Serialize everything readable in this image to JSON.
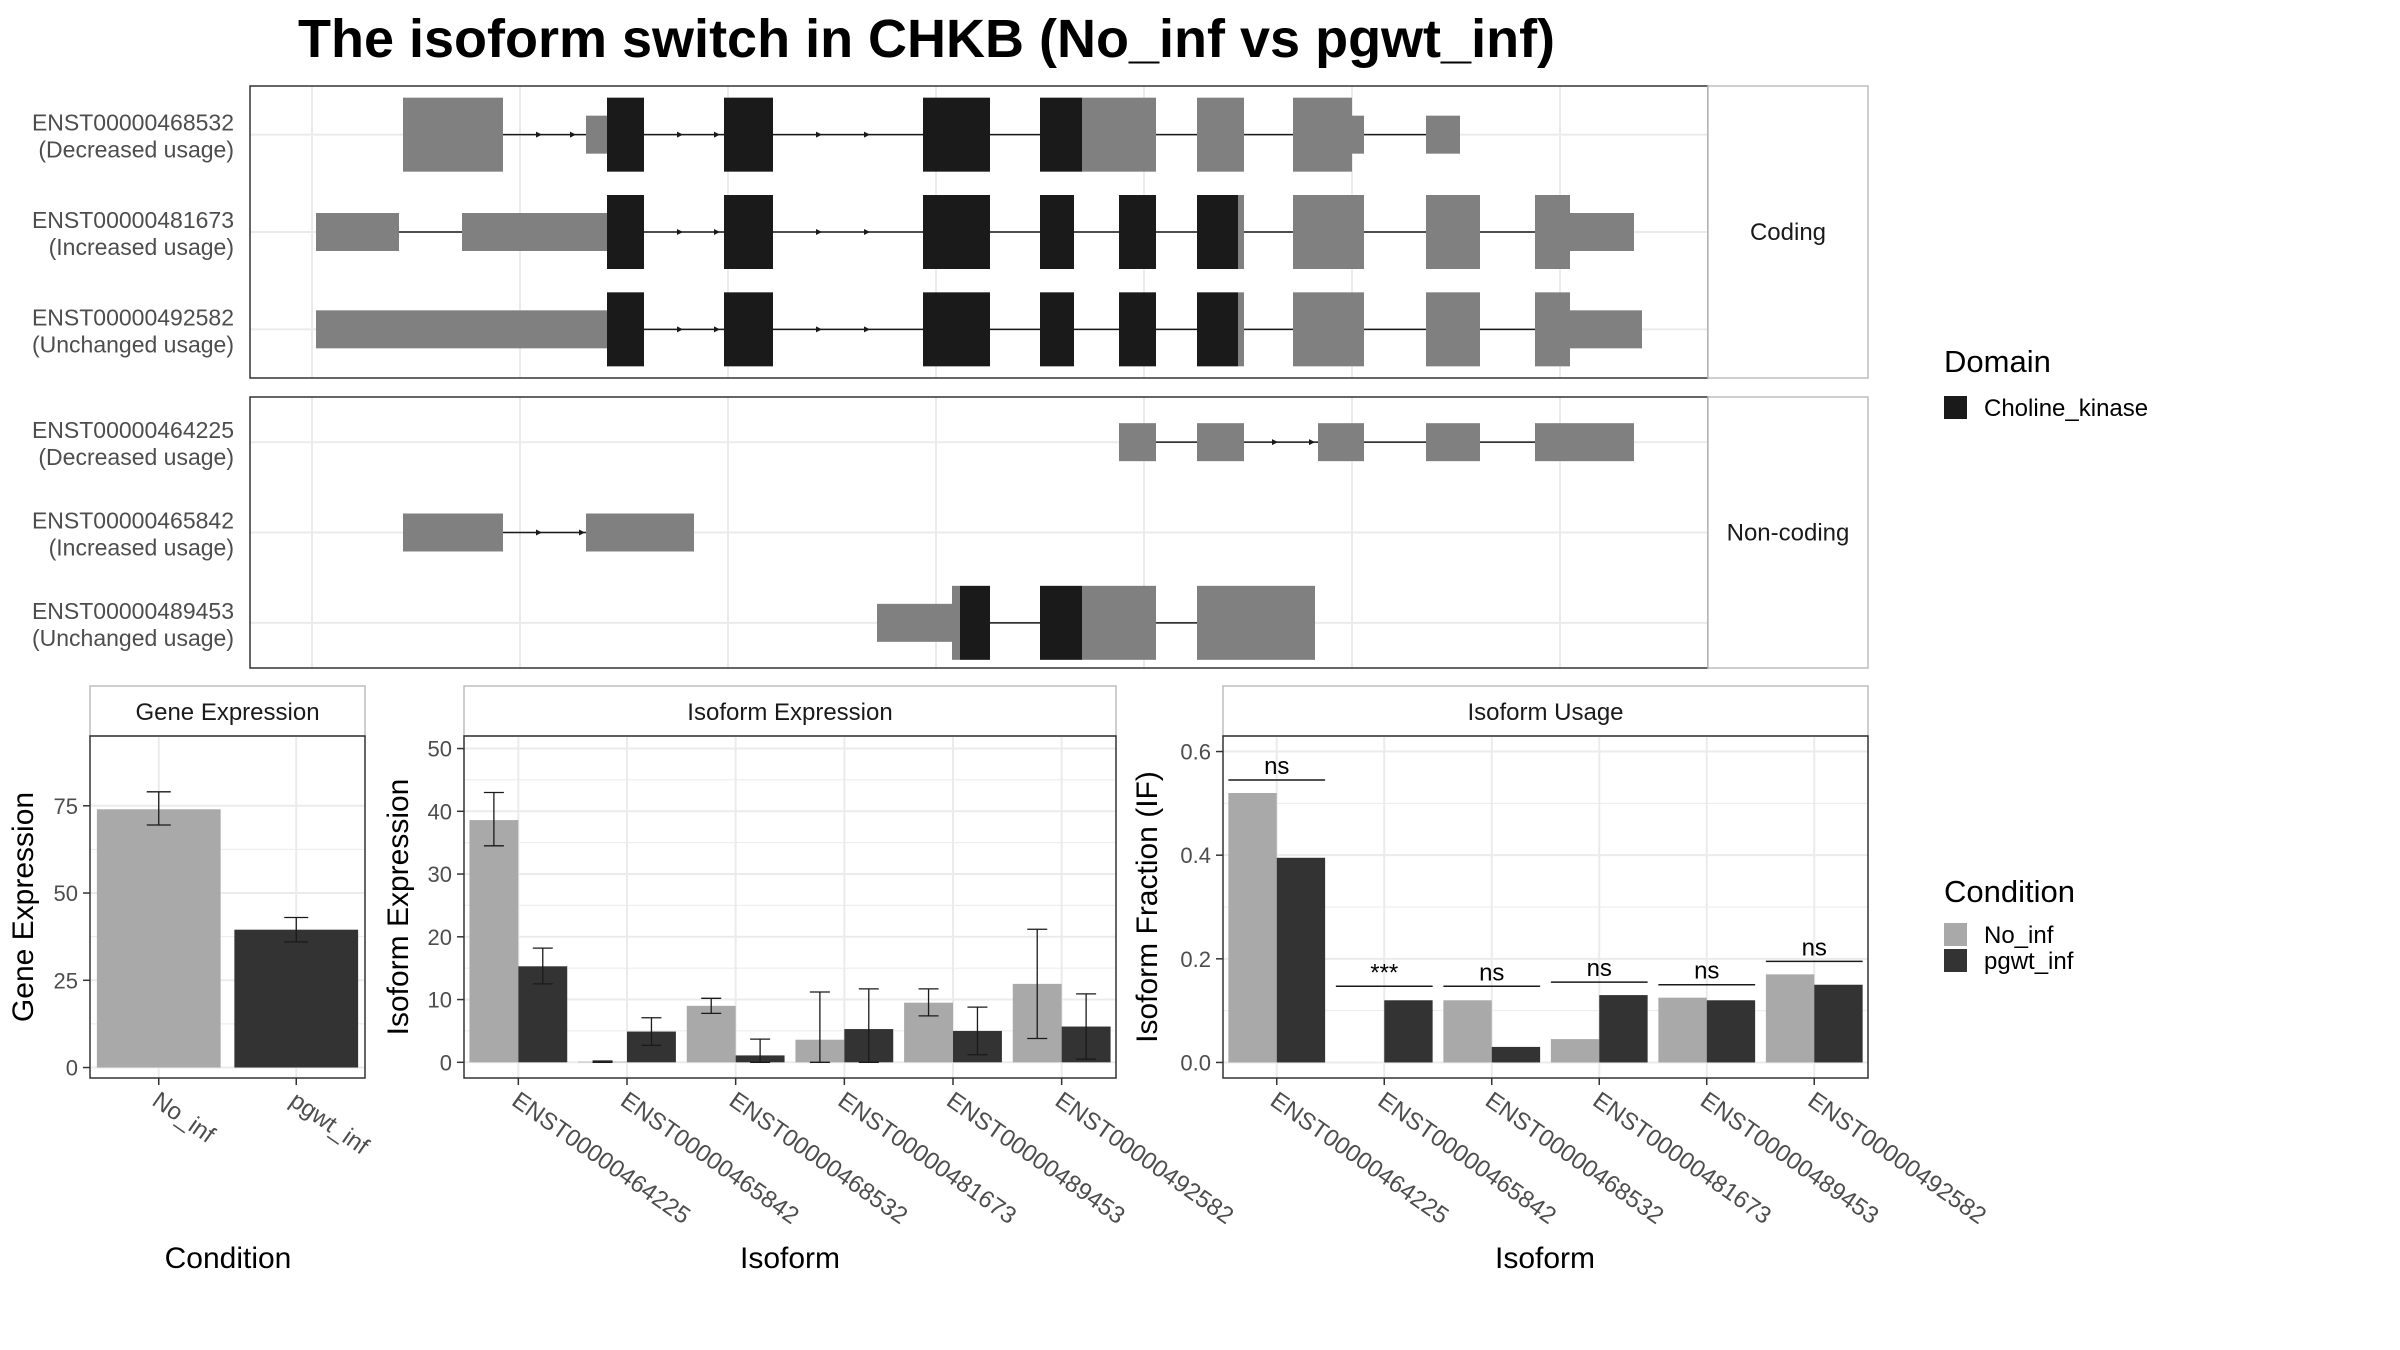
{
  "title": "The isoform switch in CHKB (No_inf vs pgwt_inf)",
  "colors": {
    "utr": "#808080",
    "domain": "#1a1a1a",
    "no_inf": "#a9a9a9",
    "pgwt_inf": "#333333",
    "grid": "#ebebeb",
    "panel_border": "#333333",
    "strip_border": "#bdbdbd"
  },
  "legends": {
    "domain": {
      "title": "Domain",
      "items": [
        {
          "label": "Choline_kinase",
          "color": "#1a1a1a"
        }
      ]
    },
    "condition": {
      "title": "Condition",
      "items": [
        {
          "label": "No_inf",
          "color": "#a9a9a9"
        },
        {
          "label": "pgwt_inf",
          "color": "#333333"
        }
      ]
    }
  },
  "chart_data": [
    {
      "type": "gene_structure",
      "facets": [
        {
          "strip": "Coding",
          "rows": [
            {
              "id": "ENST00000468532",
              "label": "(Decreased usage)"
            },
            {
              "id": "ENST00000481673",
              "label": "(Increased usage)"
            },
            {
              "id": "ENST00000492582",
              "label": "(Unchanged usage)"
            }
          ]
        },
        {
          "strip": "Non-coding",
          "rows": [
            {
              "id": "ENST00000464225",
              "label": "(Decreased usage)"
            },
            {
              "id": "ENST00000465842",
              "label": "(Increased usage)"
            },
            {
              "id": "ENST00000489453",
              "label": "(Unchanged usage)"
            }
          ]
        }
      ]
    },
    {
      "type": "bar",
      "strip": "Gene Expression",
      "xlabel": "Condition",
      "ylabel": "Gene Expression",
      "categories": [
        "No_inf",
        "pgwt_inf"
      ],
      "values": [
        74,
        39.5
      ],
      "errors": [
        [
          69.5,
          79
        ],
        [
          36,
          43
        ]
      ],
      "ylim": [
        -3,
        95
      ],
      "yticks": [
        0,
        25,
        50,
        75
      ]
    },
    {
      "type": "bar",
      "strip": "Isoform Expression",
      "xlabel": "Isoform",
      "ylabel": "Isoform Expression",
      "categories": [
        "ENST00000464225",
        "ENST00000465842",
        "ENST00000468532",
        "ENST00000481673",
        "ENST00000489453",
        "ENST00000492582"
      ],
      "series": [
        {
          "name": "No_inf",
          "values": [
            38.6,
            0.1,
            9.0,
            3.6,
            9.5,
            12.5
          ],
          "errors": [
            [
              34.5,
              43
            ],
            [
              0,
              0.2
            ],
            [
              7.8,
              10.2
            ],
            [
              0,
              11.2
            ],
            [
              7.4,
              11.7
            ],
            [
              3.8,
              21.2
            ]
          ]
        },
        {
          "name": "pgwt_inf",
          "values": [
            15.3,
            4.9,
            1.1,
            5.3,
            5.0,
            5.7
          ],
          "errors": [
            [
              12.5,
              18.2
            ],
            [
              2.7,
              7.1
            ],
            [
              0,
              3.7
            ],
            [
              0,
              11.7
            ],
            [
              1.2,
              8.8
            ],
            [
              0.5,
              10.9
            ]
          ]
        }
      ],
      "ylim": [
        -2.5,
        52
      ],
      "yticks": [
        0,
        10,
        20,
        30,
        40,
        50
      ]
    },
    {
      "type": "bar",
      "strip": "Isoform Usage",
      "xlabel": "Isoform",
      "ylabel": "Isoform Fraction (IF)",
      "categories": [
        "ENST00000464225",
        "ENST00000465842",
        "ENST00000468532",
        "ENST00000481673",
        "ENST00000489453",
        "ENST00000492582"
      ],
      "series": [
        {
          "name": "No_inf",
          "values": [
            0.52,
            0.0,
            0.12,
            0.045,
            0.125,
            0.17
          ]
        },
        {
          "name": "pgwt_inf",
          "values": [
            0.395,
            0.12,
            0.03,
            0.13,
            0.12,
            0.15
          ]
        }
      ],
      "significance": [
        {
          "label": "ns",
          "y": 0.545
        },
        {
          "label": "***",
          "y": 0.147
        },
        {
          "label": "ns",
          "y": 0.147
        },
        {
          "label": "ns",
          "y": 0.155
        },
        {
          "label": "ns",
          "y": 0.15
        },
        {
          "label": "ns",
          "y": 0.195
        }
      ],
      "ylim": [
        -0.03,
        0.63
      ],
      "yticks": [
        0.0,
        0.2,
        0.4,
        0.6
      ],
      "ytick_labels": [
        "0.0",
        "0.2",
        "0.4",
        "0.6"
      ]
    }
  ]
}
